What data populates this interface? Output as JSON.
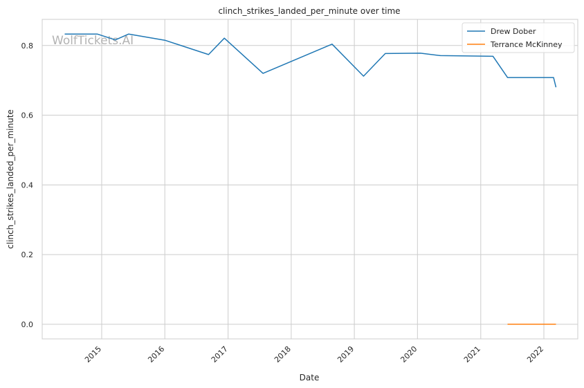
{
  "chart_data": {
    "type": "line",
    "title": "clinch_strikes_landed_per_minute over time",
    "xlabel": "Date",
    "ylabel": "clinch_strikes_landed_per_minute",
    "watermark": "WolfTickets.AI",
    "x_axis": {
      "type": "date",
      "ticks": [
        "2015",
        "2016",
        "2017",
        "2018",
        "2019",
        "2020",
        "2021",
        "2022"
      ],
      "range": [
        "2014-01-22",
        "2022-07-16"
      ]
    },
    "y_axis": {
      "ticks": [
        "0.0",
        "0.2",
        "0.4",
        "0.6",
        "0.8"
      ],
      "tick_values": [
        0.0,
        0.2,
        0.4,
        0.6,
        0.8
      ],
      "range": [
        -0.042,
        0.875
      ]
    },
    "grid": true,
    "legend_position": "top-right",
    "series": [
      {
        "name": "Drew Dober",
        "color": "#1f77b4",
        "points": [
          {
            "x": "2014-06-01",
            "y": 0.833
          },
          {
            "x": "2014-12-06",
            "y": 0.833
          },
          {
            "x": "2015-03-21",
            "y": 0.816
          },
          {
            "x": "2015-06-06",
            "y": 0.833
          },
          {
            "x": "2016-01-02",
            "y": 0.815
          },
          {
            "x": "2016-09-10",
            "y": 0.774
          },
          {
            "x": "2016-12-10",
            "y": 0.821
          },
          {
            "x": "2017-07-22",
            "y": 0.72
          },
          {
            "x": "2018-08-25",
            "y": 0.804
          },
          {
            "x": "2019-02-23",
            "y": 0.712
          },
          {
            "x": "2019-06-29",
            "y": 0.777
          },
          {
            "x": "2020-01-18",
            "y": 0.778
          },
          {
            "x": "2020-05-13",
            "y": 0.771
          },
          {
            "x": "2021-03-13",
            "y": 0.769
          },
          {
            "x": "2021-06-05",
            "y": 0.708
          },
          {
            "x": "2022-02-26",
            "y": 0.708
          },
          {
            "x": "2022-03-12",
            "y": 0.68
          }
        ]
      },
      {
        "name": "Terrance McKinney",
        "color": "#ff7f0e",
        "points": [
          {
            "x": "2021-06-05",
            "y": 0.0
          },
          {
            "x": "2022-03-12",
            "y": 0.0
          }
        ]
      }
    ]
  }
}
